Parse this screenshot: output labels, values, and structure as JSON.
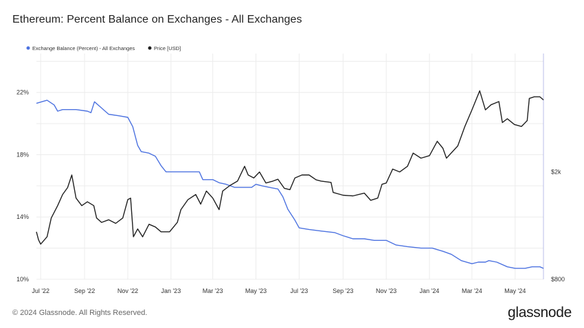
{
  "title": "Ethereum: Percent Balance on Exchanges - All Exchanges",
  "footer": "© 2024 Glassnode. All Rights Reserved.",
  "brand": "glassnode",
  "colors": {
    "balance": "#4c72e0",
    "price": "#1f1f1f",
    "grid": "#ececec",
    "axis_text": "#333333"
  },
  "chart_data": {
    "type": "line",
    "title": "Ethereum: Percent Balance on Exchanges - All Exchanges",
    "legend": {
      "position": "top-left",
      "entries": [
        {
          "name": "Exchange Balance (Percent) - All Exchanges",
          "color": "#4c72e0"
        },
        {
          "name": "Price [USD]",
          "color": "#1f1f1f"
        }
      ]
    },
    "x_ticks": [
      "Jul '22",
      "Sep '22",
      "Nov '22",
      "Jan '23",
      "Mar '23",
      "May '23",
      "Jul '23",
      "Sep '23",
      "Nov '23",
      "Jan '24",
      "Mar '24",
      "May '24"
    ],
    "x_tick_dates": [
      "2022-07-01",
      "2022-09-01",
      "2022-11-01",
      "2023-01-01",
      "2023-03-01",
      "2023-05-01",
      "2023-07-01",
      "2023-09-01",
      "2023-11-01",
      "2024-01-01",
      "2024-03-01",
      "2024-05-01"
    ],
    "xlim": [
      "2022-06-25",
      "2024-06-10"
    ],
    "left_axis": {
      "ticks": [
        10,
        14,
        18,
        22
      ],
      "tick_labels": [
        "10%",
        "14%",
        "18%",
        "22%"
      ],
      "range": [
        10,
        24.5
      ]
    },
    "right_axis": {
      "scale": "log",
      "ticks": [
        800,
        2000
      ],
      "tick_labels": [
        "$800",
        "$2k"
      ],
      "range": [
        800,
        5500
      ]
    },
    "grid": true,
    "series": [
      {
        "name": "Exchange Balance (Percent) - All Exchanges",
        "axis": "left",
        "points": [
          [
            "2022-06-25",
            21.3
          ],
          [
            "2022-07-10",
            21.5
          ],
          [
            "2022-07-20",
            21.2
          ],
          [
            "2022-07-25",
            20.8
          ],
          [
            "2022-08-01",
            20.9
          ],
          [
            "2022-08-20",
            20.9
          ],
          [
            "2022-09-05",
            20.8
          ],
          [
            "2022-09-10",
            20.7
          ],
          [
            "2022-09-15",
            21.4
          ],
          [
            "2022-09-25",
            21.0
          ],
          [
            "2022-10-05",
            20.6
          ],
          [
            "2022-10-20",
            20.5
          ],
          [
            "2022-11-01",
            20.4
          ],
          [
            "2022-11-08",
            19.8
          ],
          [
            "2022-11-15",
            18.6
          ],
          [
            "2022-11-20",
            18.2
          ],
          [
            "2022-12-01",
            18.1
          ],
          [
            "2022-12-10",
            17.9
          ],
          [
            "2022-12-18",
            17.3
          ],
          [
            "2022-12-25",
            16.9
          ],
          [
            "2023-01-15",
            16.9
          ],
          [
            "2023-02-01",
            16.9
          ],
          [
            "2023-02-10",
            16.9
          ],
          [
            "2023-02-15",
            16.4
          ],
          [
            "2023-03-01",
            16.4
          ],
          [
            "2023-03-10",
            16.2
          ],
          [
            "2023-03-20",
            16.1
          ],
          [
            "2023-04-01",
            15.9
          ],
          [
            "2023-04-15",
            15.9
          ],
          [
            "2023-04-25",
            15.9
          ],
          [
            "2023-05-01",
            16.1
          ],
          [
            "2023-05-10",
            16.0
          ],
          [
            "2023-05-20",
            15.9
          ],
          [
            "2023-06-01",
            15.8
          ],
          [
            "2023-06-08",
            15.3
          ],
          [
            "2023-06-15",
            14.5
          ],
          [
            "2023-06-25",
            13.8
          ],
          [
            "2023-07-01",
            13.3
          ],
          [
            "2023-07-15",
            13.2
          ],
          [
            "2023-08-01",
            13.1
          ],
          [
            "2023-08-20",
            13.0
          ],
          [
            "2023-09-01",
            12.8
          ],
          [
            "2023-09-15",
            12.6
          ],
          [
            "2023-10-01",
            12.6
          ],
          [
            "2023-10-15",
            12.5
          ],
          [
            "2023-11-01",
            12.5
          ],
          [
            "2023-11-15",
            12.2
          ],
          [
            "2023-12-01",
            12.1
          ],
          [
            "2023-12-20",
            12.0
          ],
          [
            "2024-01-05",
            12.0
          ],
          [
            "2024-01-20",
            11.8
          ],
          [
            "2024-02-01",
            11.6
          ],
          [
            "2024-02-15",
            11.2
          ],
          [
            "2024-03-01",
            11.0
          ],
          [
            "2024-03-10",
            11.1
          ],
          [
            "2024-03-20",
            11.1
          ],
          [
            "2024-03-25",
            11.2
          ],
          [
            "2024-04-05",
            11.1
          ],
          [
            "2024-04-20",
            10.8
          ],
          [
            "2024-05-01",
            10.7
          ],
          [
            "2024-05-15",
            10.7
          ],
          [
            "2024-05-25",
            10.8
          ],
          [
            "2024-06-05",
            10.8
          ],
          [
            "2024-06-10",
            10.7
          ]
        ]
      },
      {
        "name": "Price [USD]",
        "axis": "right",
        "points": [
          [
            "2022-06-25",
            1200
          ],
          [
            "2022-06-28",
            1120
          ],
          [
            "2022-07-01",
            1080
          ],
          [
            "2022-07-10",
            1150
          ],
          [
            "2022-07-16",
            1350
          ],
          [
            "2022-07-25",
            1500
          ],
          [
            "2022-08-01",
            1650
          ],
          [
            "2022-08-08",
            1750
          ],
          [
            "2022-08-14",
            1950
          ],
          [
            "2022-08-20",
            1600
          ],
          [
            "2022-08-28",
            1500
          ],
          [
            "2022-09-05",
            1550
          ],
          [
            "2022-09-14",
            1500
          ],
          [
            "2022-09-18",
            1350
          ],
          [
            "2022-09-25",
            1300
          ],
          [
            "2022-10-05",
            1330
          ],
          [
            "2022-10-15",
            1290
          ],
          [
            "2022-10-25",
            1350
          ],
          [
            "2022-11-01",
            1580
          ],
          [
            "2022-11-05",
            1600
          ],
          [
            "2022-11-09",
            1150
          ],
          [
            "2022-11-15",
            1230
          ],
          [
            "2022-11-22",
            1150
          ],
          [
            "2022-12-01",
            1280
          ],
          [
            "2022-12-10",
            1250
          ],
          [
            "2022-12-18",
            1200
          ],
          [
            "2022-12-30",
            1200
          ],
          [
            "2023-01-10",
            1300
          ],
          [
            "2023-01-15",
            1450
          ],
          [
            "2023-01-25",
            1580
          ],
          [
            "2023-02-05",
            1650
          ],
          [
            "2023-02-12",
            1520
          ],
          [
            "2023-02-20",
            1700
          ],
          [
            "2023-03-01",
            1600
          ],
          [
            "2023-03-10",
            1450
          ],
          [
            "2023-03-15",
            1700
          ],
          [
            "2023-03-25",
            1780
          ],
          [
            "2023-04-05",
            1850
          ],
          [
            "2023-04-15",
            2100
          ],
          [
            "2023-04-20",
            1950
          ],
          [
            "2023-04-28",
            1900
          ],
          [
            "2023-05-06",
            2000
          ],
          [
            "2023-05-15",
            1820
          ],
          [
            "2023-05-25",
            1850
          ],
          [
            "2023-06-01",
            1880
          ],
          [
            "2023-06-10",
            1740
          ],
          [
            "2023-06-18",
            1720
          ],
          [
            "2023-06-25",
            1900
          ],
          [
            "2023-07-05",
            1950
          ],
          [
            "2023-07-15",
            1950
          ],
          [
            "2023-07-25",
            1870
          ],
          [
            "2023-08-01",
            1850
          ],
          [
            "2023-08-15",
            1830
          ],
          [
            "2023-08-18",
            1680
          ],
          [
            "2023-09-01",
            1640
          ],
          [
            "2023-09-15",
            1630
          ],
          [
            "2023-10-01",
            1670
          ],
          [
            "2023-10-10",
            1570
          ],
          [
            "2023-10-20",
            1600
          ],
          [
            "2023-10-26",
            1800
          ],
          [
            "2023-11-01",
            1820
          ],
          [
            "2023-11-10",
            2050
          ],
          [
            "2023-11-20",
            2000
          ],
          [
            "2023-12-01",
            2100
          ],
          [
            "2023-12-09",
            2350
          ],
          [
            "2023-12-20",
            2250
          ],
          [
            "2024-01-01",
            2300
          ],
          [
            "2024-01-12",
            2600
          ],
          [
            "2024-01-20",
            2450
          ],
          [
            "2024-01-25",
            2250
          ],
          [
            "2024-02-10",
            2500
          ],
          [
            "2024-02-20",
            2950
          ],
          [
            "2024-03-01",
            3400
          ],
          [
            "2024-03-12",
            4000
          ],
          [
            "2024-03-20",
            3400
          ],
          [
            "2024-03-28",
            3550
          ],
          [
            "2024-04-08",
            3650
          ],
          [
            "2024-04-13",
            3050
          ],
          [
            "2024-04-20",
            3150
          ],
          [
            "2024-04-30",
            3000
          ],
          [
            "2024-05-10",
            2950
          ],
          [
            "2024-05-18",
            3100
          ],
          [
            "2024-05-21",
            3750
          ],
          [
            "2024-05-28",
            3800
          ],
          [
            "2024-06-05",
            3800
          ],
          [
            "2024-06-10",
            3700
          ]
        ]
      }
    ]
  }
}
